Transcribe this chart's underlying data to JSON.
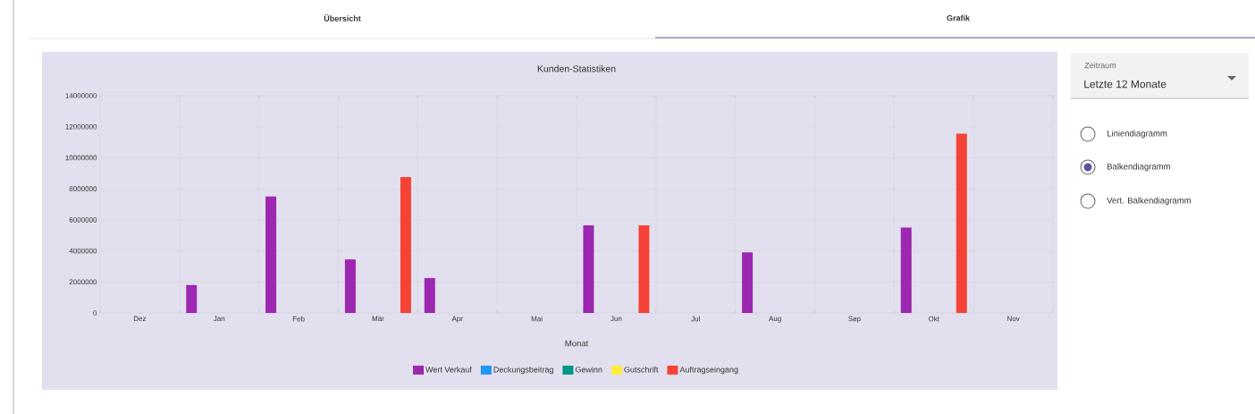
{
  "chart_data": {
    "type": "bar",
    "title": "Kunden-Statistiken",
    "xlabel": "Monat",
    "categories": [
      "Dez",
      "Jan",
      "Feb",
      "Mär",
      "Apr",
      "Mai",
      "Jun",
      "Jul",
      "Aug",
      "Sep",
      "Okt",
      "Nov"
    ],
    "series": [
      {
        "name": "Wert Verkauf",
        "color": "#9c27b0",
        "values": [
          0,
          1800000,
          7500000,
          3450000,
          2250000,
          0,
          5650000,
          0,
          3900000,
          0,
          5500000,
          0
        ]
      },
      {
        "name": "Deckungsbeitrag",
        "color": "#2196f3",
        "values": [
          0,
          0,
          0,
          0,
          0,
          0,
          0,
          0,
          0,
          0,
          0,
          0
        ]
      },
      {
        "name": "Gewinn",
        "color": "#009688",
        "values": [
          0,
          0,
          0,
          0,
          0,
          0,
          0,
          0,
          0,
          0,
          0,
          0
        ]
      },
      {
        "name": "Gutschrift",
        "color": "#ffeb3b",
        "values": [
          0,
          0,
          0,
          0,
          0,
          0,
          0,
          0,
          0,
          0,
          0,
          0
        ]
      },
      {
        "name": "Auftragseingang",
        "color": "#f44336",
        "values": [
          0,
          0,
          0,
          8750000,
          0,
          0,
          5650000,
          0,
          0,
          0,
          11550000,
          0
        ]
      }
    ],
    "ylim": [
      0,
      14000000
    ],
    "yticks": [
      0,
      2000000,
      4000000,
      6000000,
      8000000,
      10000000,
      12000000,
      14000000
    ],
    "grid": true,
    "legend": "bottom",
    "annotations": [
      "Übersicht",
      "Grafik",
      "Zeitraum",
      "Letzte 12 Monate",
      "Liniendiagramm",
      "Balkendiagramm",
      "Vert. Balkendiagramm"
    ]
  }
}
